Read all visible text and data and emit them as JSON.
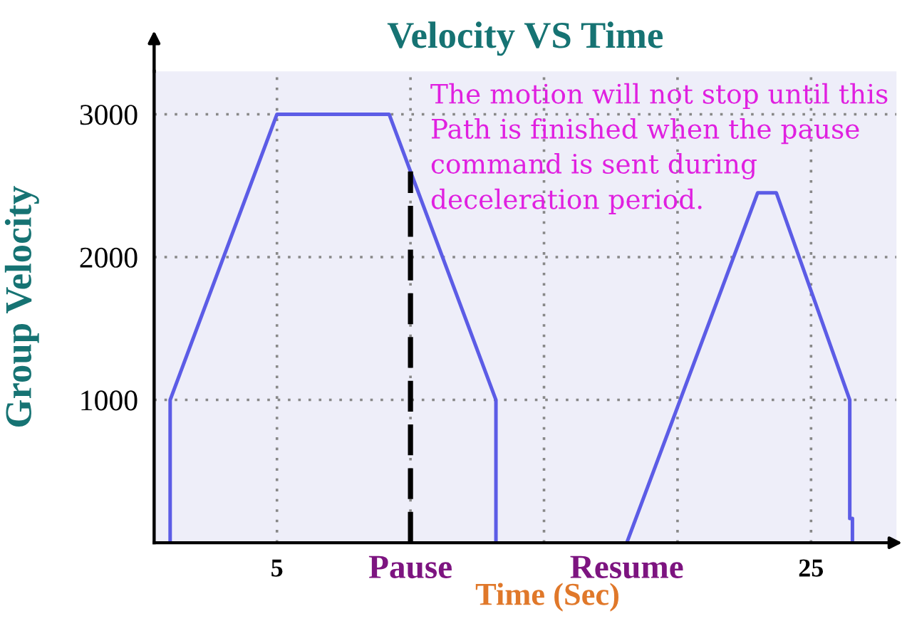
{
  "chart_data": {
    "type": "line",
    "title": "Velocity VS Time",
    "xlabel": "Time (Sec)",
    "ylabel": "Group Velocity",
    "series": [
      {
        "color": "#5c5ce6",
        "x": [
          1,
          1,
          5,
          9.2,
          13.2,
          13.2
        ],
        "values": [
          0,
          1000,
          3000,
          3000,
          1000,
          0
        ]
      },
      {
        "color": "#5c5ce6",
        "x": [
          18.1,
          23,
          23.7,
          26.45,
          26.45,
          26.55,
          26.55
        ],
        "values": [
          0,
          2450,
          2450,
          1000,
          170,
          170,
          0
        ]
      },
      {
        "color": "#000000",
        "line_style": "dashed",
        "x": [
          10,
          10
        ],
        "values": [
          0,
          2600
        ]
      }
    ],
    "xlim": [
      0.4,
      28.2
    ],
    "ylim": [
      0,
      3300
    ],
    "xticks": [
      5,
      {
        "value": 10,
        "label": null
      },
      {
        "value": 15,
        "label": null
      },
      {
        "value": 20,
        "label": null
      },
      25
    ],
    "yticks": [
      1000,
      2000,
      3000
    ],
    "grid": true,
    "line_style": "solid",
    "annotations": [
      "The motion will not stop until this\nPath is finished when the pause\ncommand is sent during\ndeceleration period.",
      {
        "text": "Pause",
        "x": 10,
        "y": 0
      },
      {
        "text": "Resume",
        "x": 18.1,
        "y": 0
      }
    ]
  }
}
